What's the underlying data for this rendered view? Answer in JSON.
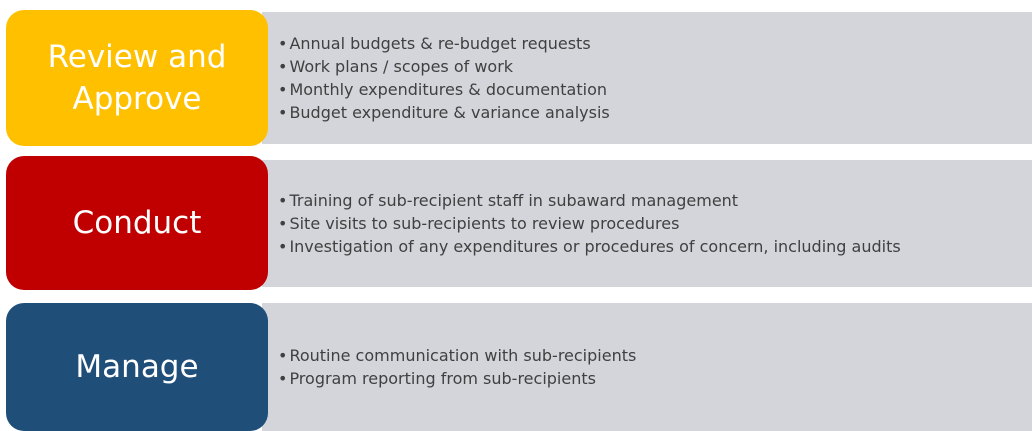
{
  "rows": [
    {
      "label": "Review and Approve",
      "color": "#FFC000",
      "items": [
        "Annual budgets & re-budget requests",
        "Work plans / scopes of work",
        "Monthly expenditures & documentation",
        "Budget expenditure & variance analysis"
      ]
    },
    {
      "label": "Conduct",
      "color": "#C00000",
      "items": [
        "Training of sub-recipient staff in subaward management",
        "Site visits to sub-recipients to review procedures",
        "Investigation of any expenditures or procedures of concern, including audits"
      ]
    },
    {
      "label": "Manage",
      "color": "#1F4E79",
      "items": [
        "Routine communication with sub-recipients",
        "Program reporting from sub-recipients"
      ]
    }
  ]
}
